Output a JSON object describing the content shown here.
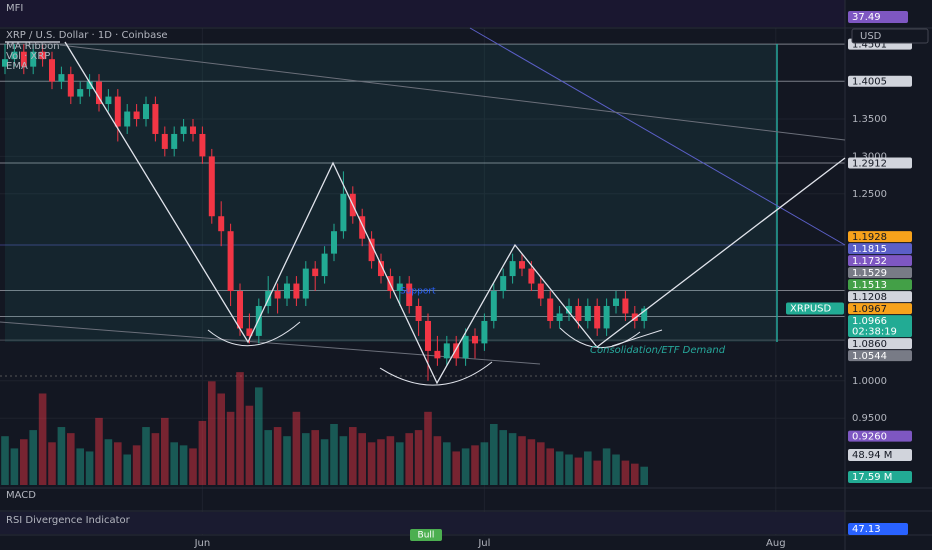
{
  "chart_data": {
    "type": "candlestick",
    "title": "XRP / U.S. Dollar · 1D · Coinbase",
    "indicators": [
      "MA Ribbon",
      "Vol · XRP",
      "EMA"
    ],
    "currency": "USD",
    "up_color": "#22ab94",
    "down_color": "#f23645",
    "categories": [
      null,
      null,
      null,
      null,
      null,
      null,
      null,
      null,
      null,
      null,
      null,
      null,
      null,
      null,
      null,
      null,
      null,
      null,
      null,
      null,
      null,
      "Jun",
      null,
      null,
      null,
      null,
      null,
      null,
      null,
      null,
      null,
      null,
      null,
      null,
      null,
      null,
      null,
      null,
      null,
      null,
      null,
      null,
      null,
      null,
      null,
      null,
      null,
      null,
      null,
      null,
      null,
      "Jul",
      null,
      null,
      null,
      null,
      null,
      null,
      null,
      null,
      null,
      null,
      null,
      null,
      null,
      null,
      null,
      null,
      null,
      null,
      null,
      null,
      null,
      null,
      null,
      null,
      null,
      null,
      null,
      null,
      null,
      null,
      "Aug",
      null,
      null,
      null,
      null,
      null,
      null,
      null
    ],
    "open": [
      1.42,
      1.43,
      1.44,
      1.42,
      1.44,
      1.43,
      1.4,
      1.41,
      1.38,
      1.39,
      1.4,
      1.37,
      1.38,
      1.34,
      1.36,
      1.35,
      1.37,
      1.33,
      1.31,
      1.33,
      1.34,
      1.33,
      1.3,
      1.22,
      1.2,
      1.12,
      1.07,
      1.06,
      1.1,
      1.12,
      1.11,
      1.13,
      1.11,
      1.15,
      1.14,
      1.17,
      1.2,
      1.25,
      1.22,
      1.19,
      1.16,
      1.14,
      1.12,
      1.13,
      1.1,
      1.08,
      1.04,
      1.03,
      1.05,
      1.03,
      1.06,
      1.05,
      1.08,
      1.12,
      1.14,
      1.16,
      1.15,
      1.13,
      1.11,
      1.08,
      1.09,
      1.1,
      1.08,
      1.1,
      1.07,
      1.1,
      1.11,
      1.09,
      1.08,
      null,
      null,
      null,
      null,
      null,
      null,
      null,
      null,
      null,
      null,
      null,
      null,
      null,
      null,
      null,
      null,
      null,
      null,
      null,
      null,
      null
    ],
    "high": [
      1.45,
      1.45,
      1.45,
      1.45,
      1.45,
      1.44,
      1.42,
      1.42,
      1.4,
      1.41,
      1.41,
      1.39,
      1.39,
      1.37,
      1.37,
      1.38,
      1.38,
      1.34,
      1.34,
      1.35,
      1.35,
      1.34,
      1.31,
      1.24,
      1.21,
      1.13,
      1.09,
      1.11,
      1.14,
      1.13,
      1.14,
      1.14,
      1.16,
      1.16,
      1.18,
      1.21,
      1.28,
      1.26,
      1.23,
      1.2,
      1.17,
      1.15,
      1.14,
      1.14,
      1.11,
      1.09,
      1.06,
      1.06,
      1.06,
      1.07,
      1.07,
      1.09,
      1.13,
      1.15,
      1.17,
      1.17,
      1.16,
      1.14,
      1.12,
      1.1,
      1.11,
      1.11,
      1.11,
      1.11,
      1.11,
      1.12,
      1.12,
      1.1,
      1.1,
      null,
      null,
      null,
      null,
      null,
      null,
      null,
      null,
      null,
      null,
      null,
      null,
      null,
      null,
      null,
      null,
      null,
      null,
      null,
      null,
      null
    ],
    "low": [
      1.41,
      1.42,
      1.41,
      1.41,
      1.42,
      1.39,
      1.39,
      1.37,
      1.37,
      1.38,
      1.36,
      1.36,
      1.32,
      1.33,
      1.34,
      1.34,
      1.32,
      1.3,
      1.3,
      1.32,
      1.32,
      1.29,
      1.21,
      1.18,
      1.1,
      1.06,
      1.05,
      1.05,
      1.09,
      1.09,
      1.1,
      1.1,
      1.1,
      1.12,
      1.13,
      1.16,
      1.19,
      1.21,
      1.18,
      1.15,
      1.13,
      1.11,
      1.1,
      1.09,
      1.06,
      1.0,
      1.02,
      1.02,
      1.02,
      1.02,
      1.03,
      1.04,
      1.07,
      1.11,
      1.13,
      1.14,
      1.12,
      1.1,
      1.07,
      1.07,
      1.08,
      1.07,
      1.07,
      1.06,
      1.06,
      1.09,
      1.08,
      1.07,
      1.07,
      null,
      null,
      null,
      null,
      null,
      null,
      null,
      null,
      null,
      null,
      null,
      null,
      null,
      null,
      null,
      null,
      null,
      null,
      null,
      null,
      null
    ],
    "close": [
      1.43,
      1.44,
      1.42,
      1.44,
      1.43,
      1.4,
      1.41,
      1.38,
      1.39,
      1.4,
      1.37,
      1.38,
      1.34,
      1.36,
      1.35,
      1.37,
      1.33,
      1.31,
      1.33,
      1.34,
      1.33,
      1.3,
      1.22,
      1.2,
      1.12,
      1.07,
      1.06,
      1.1,
      1.12,
      1.11,
      1.13,
      1.11,
      1.15,
      1.14,
      1.17,
      1.2,
      1.25,
      1.22,
      1.19,
      1.16,
      1.14,
      1.12,
      1.13,
      1.1,
      1.08,
      1.04,
      1.03,
      1.05,
      1.03,
      1.06,
      1.05,
      1.08,
      1.12,
      1.14,
      1.16,
      1.15,
      1.13,
      1.11,
      1.08,
      1.09,
      1.1,
      1.08,
      1.1,
      1.07,
      1.1,
      1.11,
      1.09,
      1.08,
      1.0966,
      null,
      null,
      null,
      null,
      null,
      null,
      null,
      null,
      null,
      null,
      null,
      null,
      null,
      null,
      null,
      null,
      null,
      null,
      null,
      null,
      null
    ],
    "volume": [
      80,
      60,
      75,
      90,
      150,
      70,
      95,
      85,
      60,
      55,
      110,
      75,
      70,
      50,
      65,
      95,
      85,
      110,
      70,
      65,
      60,
      105,
      170,
      150,
      120,
      185,
      130,
      160,
      90,
      95,
      80,
      120,
      85,
      90,
      75,
      100,
      80,
      95,
      85,
      70,
      75,
      80,
      70,
      85,
      90,
      120,
      80,
      70,
      55,
      60,
      65,
      70,
      100,
      90,
      85,
      80,
      75,
      70,
      60,
      55,
      50,
      45,
      55,
      40,
      60,
      50,
      40,
      35,
      30,
      null,
      null,
      null,
      null,
      null,
      null,
      null,
      null,
      null,
      null,
      null,
      null,
      null,
      null,
      null,
      null,
      null,
      null,
      null,
      null,
      null
    ],
    "volume_badges": [
      {
        "label": "48.94 M",
        "color": "#d1d4dc"
      },
      {
        "label": "17.59 M",
        "color": "#22ab94"
      }
    ],
    "ylim": [
      0.858,
      1.469
    ],
    "yticks": [
      {
        "value": 0.95,
        "label": "0.9500"
      },
      {
        "value": 1.0,
        "label": "1.0000"
      },
      {
        "value": 1.25,
        "label": "1.2500"
      },
      {
        "value": 1.3,
        "label": "1.3000"
      },
      {
        "value": 1.35,
        "label": "1.3500"
      }
    ],
    "price_lines": [
      {
        "value": 1.4501,
        "color": "#d1d4dc",
        "line": true
      },
      {
        "value": 1.4005,
        "color": "#d1d4dc",
        "line": true
      },
      {
        "value": 1.2912,
        "color": "#d1d4dc",
        "line": true
      },
      {
        "value": 1.1928,
        "color": "#f7a21b"
      },
      {
        "value": 1.1815,
        "color": "#5b5fc7",
        "line": true
      },
      {
        "value": 1.1732,
        "color": "#7e57c2"
      },
      {
        "value": 1.1529,
        "color": "#787b86"
      },
      {
        "value": 1.1513,
        "color": "#43a047"
      },
      {
        "value": 1.1208,
        "color": "#d1d4dc",
        "line": true
      },
      {
        "value": 1.0967,
        "color": "#f7a21b"
      },
      {
        "value": 1.0966,
        "color": "#22ab94",
        "tag": "XRPUSD",
        "countdown": "02:38:19"
      },
      {
        "value": 1.086,
        "label": "1.0860",
        "color": "#d1d4dc",
        "line": true
      },
      {
        "value": 1.0544,
        "label": "1.0544",
        "color": "#787b86",
        "line": true
      },
      {
        "value": 0.926,
        "label": "0.9260",
        "color": "#7e57c2"
      }
    ],
    "annotations": [
      "Support",
      "Consolidation/ETF Demand"
    ],
    "oscillators": [
      {
        "name": "MFI",
        "badge": "37.49",
        "color": "#7e57c2"
      },
      {
        "name": "MACD"
      },
      {
        "name": "RSI Divergence Indicator",
        "badge": "47.13",
        "color": "#2962ff",
        "tag": "Bull"
      }
    ]
  }
}
